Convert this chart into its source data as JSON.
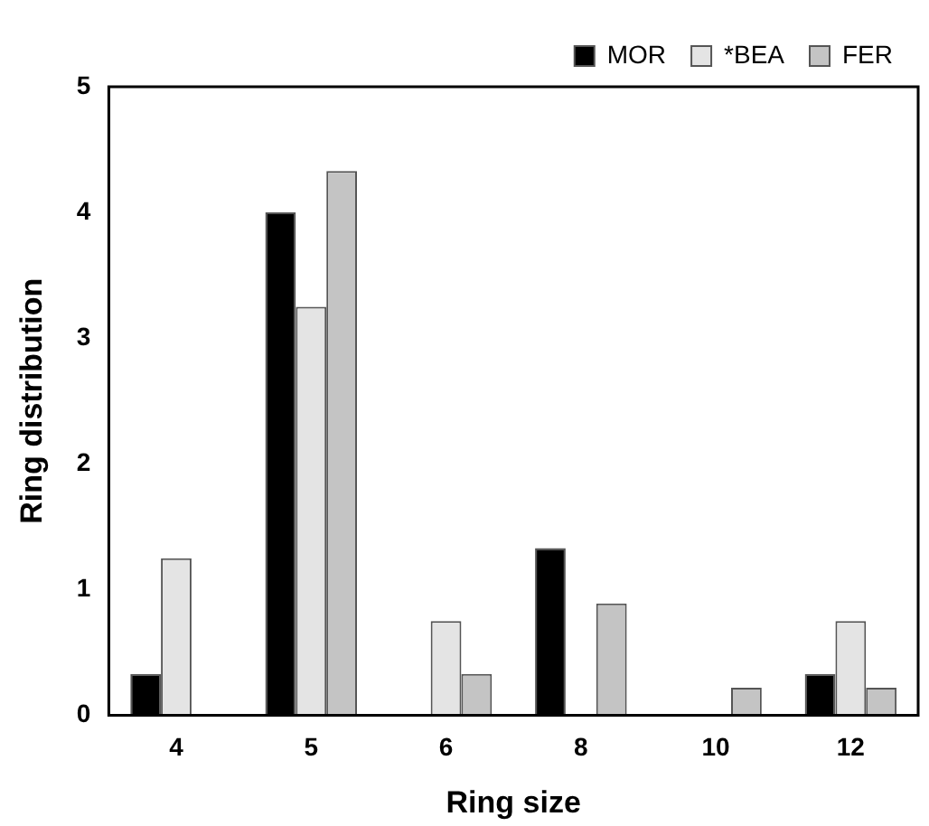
{
  "chart_data": {
    "type": "bar",
    "xlabel": "Ring size",
    "ylabel": "Ring distribution",
    "categories": [
      "4",
      "5",
      "6",
      "8",
      "10",
      "12"
    ],
    "series": [
      {
        "name": "MOR",
        "color": "#000000",
        "values": [
          0.33,
          4,
          0,
          1.33,
          0,
          0.33
        ]
      },
      {
        "name": "*BEA",
        "color": "#e4e4e4",
        "values": [
          1.25,
          3.25,
          0.75,
          0,
          0,
          0.75
        ]
      },
      {
        "name": "FER",
        "color": "#c4c4c4",
        "values": [
          0,
          4.33,
          0.33,
          0.89,
          0.22,
          0.22
        ]
      }
    ],
    "ylim": [
      0,
      5
    ],
    "yticks": [
      0,
      1,
      2,
      3,
      4,
      5
    ],
    "grid": false,
    "legend": "top right"
  }
}
